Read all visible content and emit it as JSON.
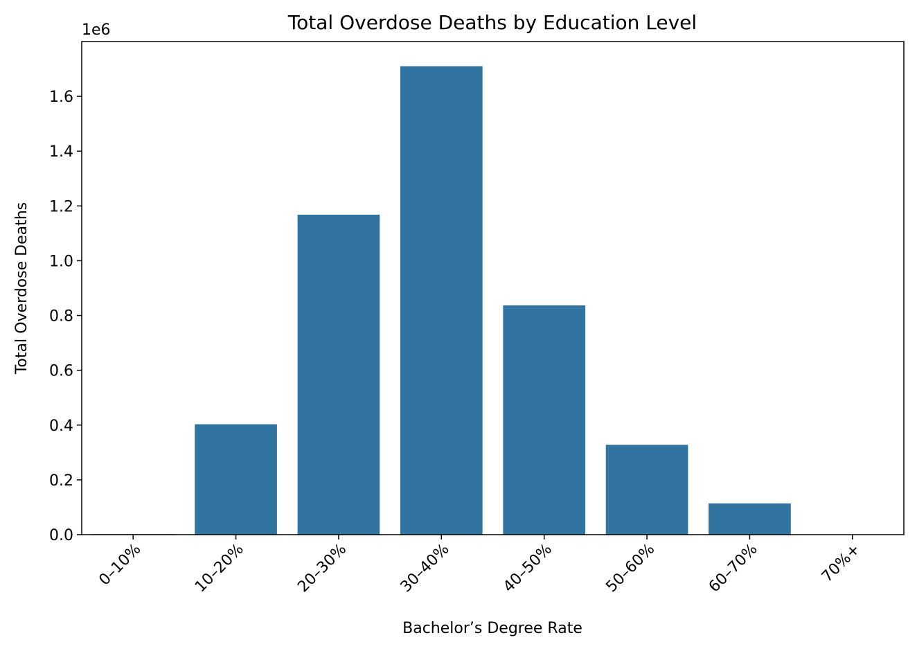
{
  "chart_data": {
    "type": "bar",
    "title": "Total Overdose Deaths by Education Level",
    "xlabel": "Bachelor’s Degree Rate",
    "ylabel": "Total Overdose Deaths",
    "y_offset_label": "1e6",
    "categories": [
      "0–10%",
      "10–20%",
      "20–30%",
      "30–40%",
      "40–50%",
      "50–60%",
      "60–70%",
      "70%+"
    ],
    "values": [
      2000,
      403000,
      1168000,
      1710000,
      837000,
      328000,
      114000,
      1000
    ],
    "ylim": [
      0,
      1800000
    ],
    "yticks": [
      0,
      200000,
      400000,
      600000,
      800000,
      1000000,
      1200000,
      1400000,
      1600000
    ],
    "ytick_labels": [
      "0.0",
      "0.2",
      "0.4",
      "0.6",
      "0.8",
      "1.0",
      "1.2",
      "1.4",
      "1.6"
    ],
    "bar_color": "#3274a1",
    "grid": false,
    "legend": "none"
  }
}
